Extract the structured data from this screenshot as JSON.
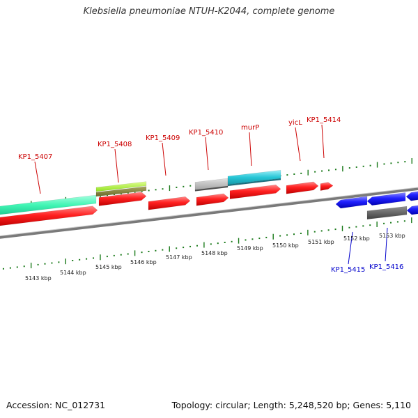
{
  "title": "Klebsiella pneumoniae NTUH-K2044, complete genome",
  "footer": {
    "accession": "Accession: NC_012731",
    "summary": "Topology: circular; Length: 5,248,520 bp; Genes: 5,110"
  },
  "colors": {
    "forward_cds": "#ff1a1a",
    "reverse_cds": "#1a1aff",
    "teal": "#40f5b4",
    "cyan": "#26c6d6",
    "lime": "#a8f02a",
    "olive": "#8a8a3a",
    "grey": "#b8b8b8",
    "dark_grey": "#606060",
    "tick": "#1a7a1a",
    "label_forward": "#cc0000",
    "label_reverse": "#0000cc"
  },
  "scale_labels": [
    "5143 kbp",
    "5144 kbp",
    "5145 kbp",
    "5146 kbp",
    "5147 kbp",
    "5148 kbp",
    "5149 kbp",
    "5150 kbp",
    "5151 kbp",
    "5152 kbp",
    "5153 kbp"
  ],
  "gene_labels_top": [
    "KP1_5407",
    "KP1_5408",
    "KP1_5409",
    "KP1_5410",
    "murP",
    "yicL",
    "KP1_5414"
  ],
  "gene_labels_bottom": [
    "KP1_5415",
    "KP1_5416"
  ]
}
